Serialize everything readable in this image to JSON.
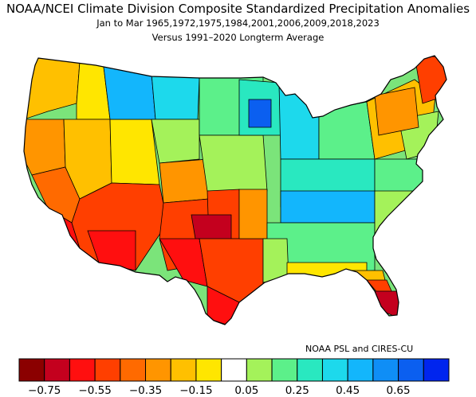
{
  "title": "NOAA/NCEI Climate Division Composite Standardized Precipitation Anomalies",
  "subtitle": "Jan to Mar  1965,1972,1975,1984,2001,2006,2009,2018,2023",
  "subtitle2": "Versus 1991–2020 Longterm Average",
  "credit": "NOAA PSL and CIRES-CU",
  "colorbar": {
    "colors": [
      "#8b0000",
      "#c4001e",
      "#ff0f0f",
      "#ff3f00",
      "#ff6a00",
      "#ff9500",
      "#ffc000",
      "#ffe600",
      "#ffffff",
      "#a4f25a",
      "#5cf08a",
      "#29e8c0",
      "#1dd9ec",
      "#13b6fc",
      "#0f8ef6",
      "#0b5ff0",
      "#0025ee"
    ],
    "tick_labels": [
      "−0.75",
      "−0.55",
      "−0.35",
      "−0.15",
      "0.05",
      "0.25",
      "0.45",
      "0.65"
    ]
  }
}
